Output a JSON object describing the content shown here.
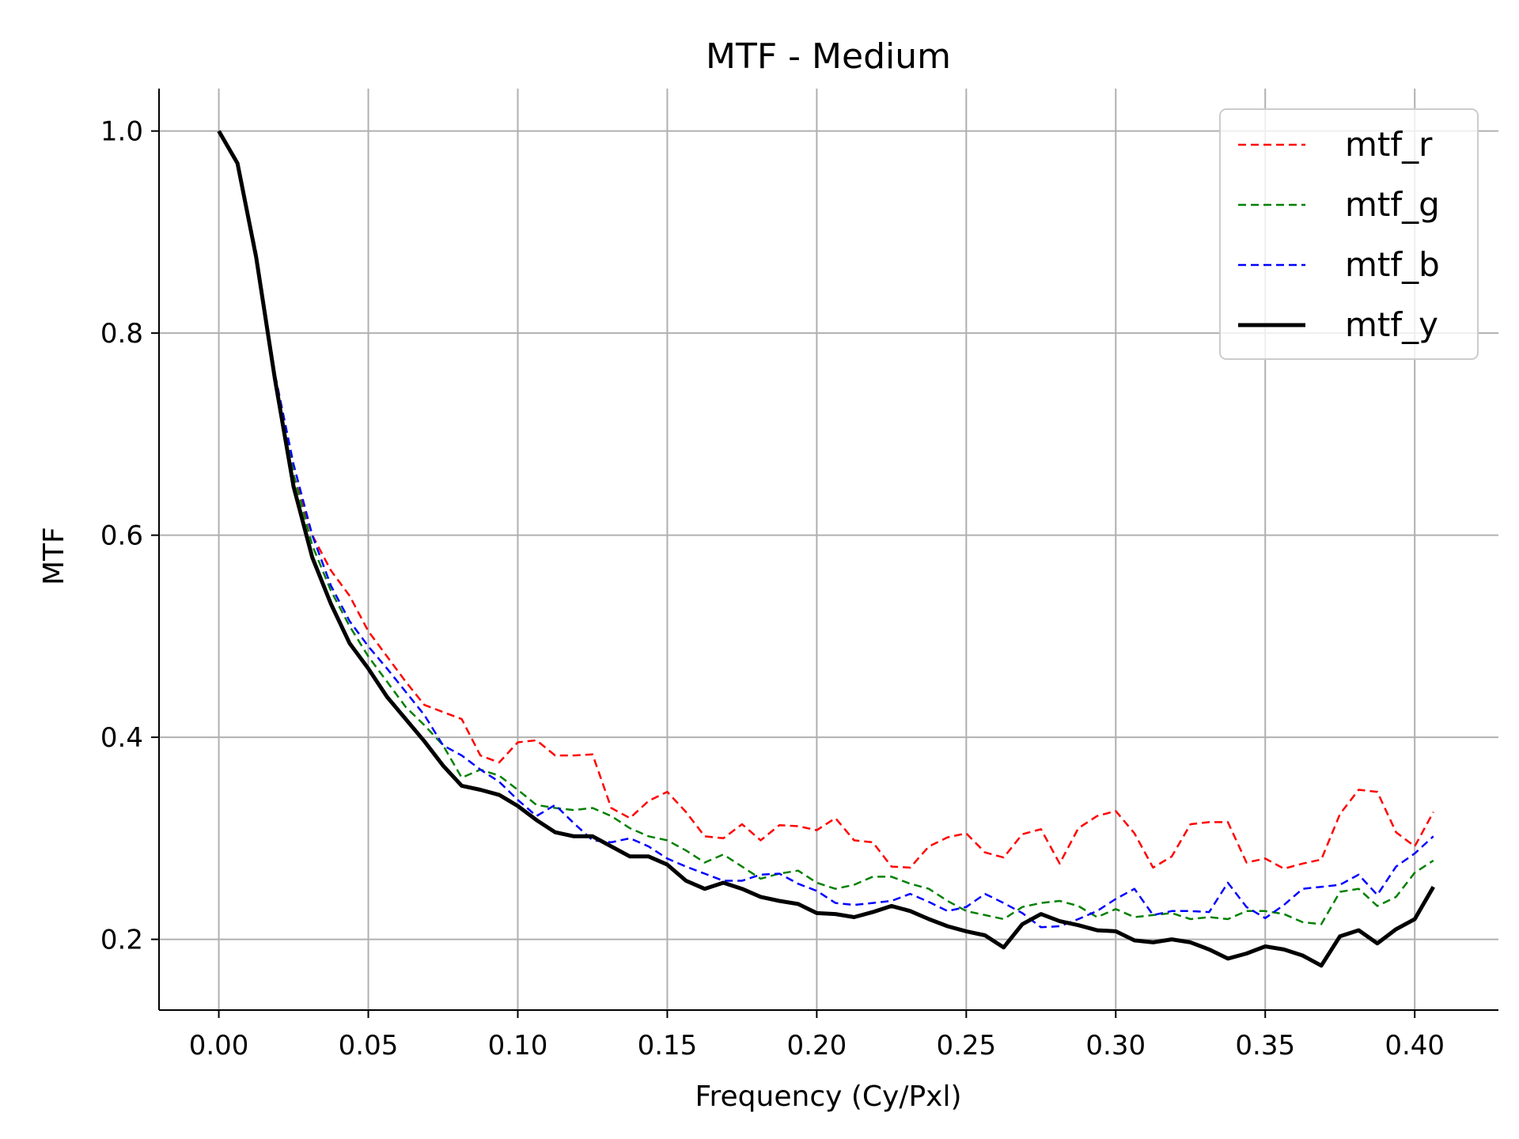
{
  "chart_data": {
    "type": "line",
    "title": "MTF - Medium",
    "xlabel": "Frequency (Cy/Pxl)",
    "ylabel": "MTF",
    "xlim": [
      -0.02,
      0.428
    ],
    "ylim": [
      0.13,
      1.042
    ],
    "xticks": [
      "0.00",
      "0.05",
      "0.10",
      "0.15",
      "0.20",
      "0.25",
      "0.30",
      "0.35",
      "0.40"
    ],
    "yticks": [
      "0.2",
      "0.4",
      "0.6",
      "0.8",
      "1.0"
    ],
    "grid": true,
    "legend_position": "top-right",
    "x": [
      0.0,
      0.00625,
      0.0125,
      0.01875,
      0.025,
      0.03125,
      0.0375,
      0.04375,
      0.05,
      0.05625,
      0.0625,
      0.06875,
      0.075,
      0.08125,
      0.0875,
      0.09375,
      0.1,
      0.10625,
      0.1125,
      0.11875,
      0.125,
      0.13125,
      0.1375,
      0.14375,
      0.15,
      0.15625,
      0.1625,
      0.16875,
      0.175,
      0.18125,
      0.1875,
      0.19375,
      0.2,
      0.20625,
      0.2125,
      0.21875,
      0.225,
      0.23125,
      0.2375,
      0.24375,
      0.25,
      0.25625,
      0.2625,
      0.26875,
      0.275,
      0.28125,
      0.2875,
      0.29375,
      0.3,
      0.30625,
      0.3125,
      0.31875,
      0.325,
      0.33125,
      0.3375,
      0.34375,
      0.35,
      0.35625,
      0.3625,
      0.36875,
      0.375,
      0.38125,
      0.3875,
      0.39375,
      0.4,
      0.40625
    ],
    "series": [
      {
        "name": "mtf_r",
        "color": "#ff0000",
        "style": "dashed",
        "values": [
          1.0,
          0.97,
          0.88,
          0.76,
          0.66,
          0.6,
          0.565,
          0.54,
          0.505,
          0.48,
          0.455,
          0.432,
          0.425,
          0.418,
          0.382,
          0.375,
          0.395,
          0.397,
          0.382,
          0.382,
          0.383,
          0.33,
          0.32,
          0.337,
          0.346,
          0.326,
          0.302,
          0.3,
          0.314,
          0.298,
          0.313,
          0.312,
          0.308,
          0.32,
          0.298,
          0.296,
          0.272,
          0.271,
          0.292,
          0.301,
          0.305,
          0.286,
          0.281,
          0.304,
          0.309,
          0.275,
          0.31,
          0.322,
          0.327,
          0.305,
          0.271,
          0.282,
          0.314,
          0.316,
          0.316,
          0.276,
          0.28,
          0.27,
          0.275,
          0.279,
          0.324,
          0.348,
          0.346,
          0.306,
          0.292,
          0.326
        ]
      },
      {
        "name": "mtf_g",
        "color": "#008000",
        "style": "dashed",
        "values": [
          1.0,
          0.97,
          0.88,
          0.76,
          0.66,
          0.59,
          0.545,
          0.51,
          0.48,
          0.455,
          0.43,
          0.412,
          0.392,
          0.36,
          0.368,
          0.362,
          0.348,
          0.333,
          0.33,
          0.328,
          0.33,
          0.322,
          0.31,
          0.302,
          0.298,
          0.288,
          0.276,
          0.284,
          0.272,
          0.26,
          0.265,
          0.268,
          0.256,
          0.25,
          0.254,
          0.262,
          0.262,
          0.255,
          0.25,
          0.238,
          0.228,
          0.224,
          0.22,
          0.232,
          0.236,
          0.238,
          0.233,
          0.222,
          0.23,
          0.222,
          0.224,
          0.226,
          0.22,
          0.222,
          0.22,
          0.228,
          0.228,
          0.225,
          0.217,
          0.215,
          0.247,
          0.25,
          0.233,
          0.242,
          0.266,
          0.278
        ]
      },
      {
        "name": "mtf_b",
        "color": "#0000ff",
        "style": "dashed",
        "values": [
          1.0,
          0.97,
          0.88,
          0.76,
          0.67,
          0.6,
          0.55,
          0.515,
          0.49,
          0.468,
          0.445,
          0.422,
          0.392,
          0.382,
          0.368,
          0.356,
          0.338,
          0.322,
          0.333,
          0.315,
          0.298,
          0.296,
          0.3,
          0.292,
          0.28,
          0.272,
          0.265,
          0.258,
          0.258,
          0.264,
          0.265,
          0.255,
          0.248,
          0.236,
          0.234,
          0.236,
          0.238,
          0.245,
          0.237,
          0.228,
          0.232,
          0.245,
          0.236,
          0.226,
          0.212,
          0.213,
          0.22,
          0.228,
          0.24,
          0.25,
          0.224,
          0.228,
          0.228,
          0.227,
          0.256,
          0.232,
          0.221,
          0.234,
          0.25,
          0.252,
          0.254,
          0.264,
          0.244,
          0.272,
          0.285,
          0.302
        ]
      },
      {
        "name": "mtf_y",
        "color": "#000000",
        "style": "solid",
        "values": [
          1.0,
          0.968,
          0.875,
          0.755,
          0.648,
          0.578,
          0.532,
          0.493,
          0.468,
          0.44,
          0.418,
          0.396,
          0.372,
          0.352,
          0.348,
          0.343,
          0.332,
          0.318,
          0.306,
          0.302,
          0.302,
          0.292,
          0.282,
          0.282,
          0.274,
          0.258,
          0.25,
          0.256,
          0.25,
          0.242,
          0.238,
          0.235,
          0.226,
          0.225,
          0.222,
          0.227,
          0.233,
          0.228,
          0.22,
          0.213,
          0.208,
          0.204,
          0.192,
          0.215,
          0.225,
          0.218,
          0.214,
          0.209,
          0.208,
          0.199,
          0.197,
          0.2,
          0.197,
          0.19,
          0.181,
          0.186,
          0.193,
          0.19,
          0.184,
          0.174,
          0.203,
          0.209,
          0.196,
          0.21,
          0.22,
          0.252
        ]
      }
    ]
  }
}
